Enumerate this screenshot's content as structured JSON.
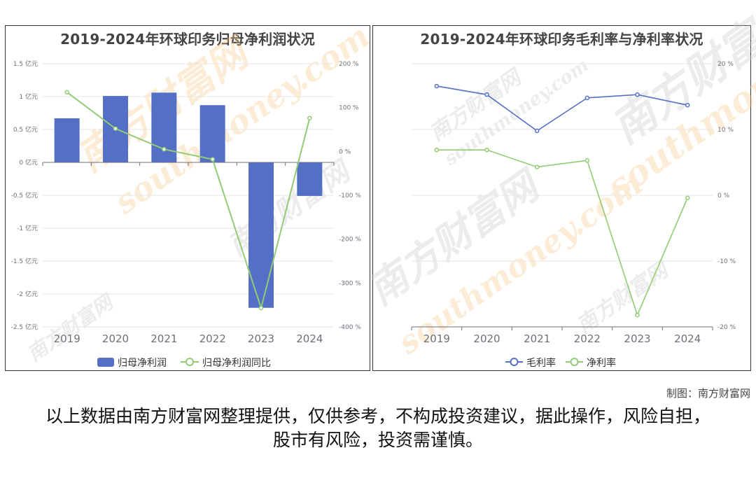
{
  "credit": "制图：南方财富网",
  "disclaimer": "以上数据由南方财富网整理提供，仅供参考，不构成投资建议，据此操作，风险自担，股市有风险，投资需谨慎。",
  "watermark": {
    "cn": "南方财富网",
    "en": "southmoney.com"
  },
  "colors": {
    "bar": "#5470c6",
    "line_green": "#91cc75",
    "line_blue": "#5470c6",
    "axis": "#6e7079",
    "grid": "#e6e6e6",
    "watermark": "#f5c98a"
  },
  "chart_data": [
    {
      "type": "bar",
      "title": "2019-2024年环球印务归母净利润状况",
      "categories": [
        "2019",
        "2020",
        "2021",
        "2022",
        "2023",
        "2024"
      ],
      "series": [
        {
          "name": "归母净利润",
          "type": "bar",
          "axis": "left",
          "values": [
            0.67,
            1.01,
            1.06,
            0.87,
            -2.21,
            -0.51
          ]
        },
        {
          "name": "归母净利润同比",
          "type": "line",
          "axis": "right",
          "values": [
            135,
            52,
            5,
            -18,
            -357,
            76
          ]
        }
      ],
      "y_left": {
        "ticks": [
          "1.5 亿元",
          "1 亿元",
          "0.5 亿元",
          "0 亿元",
          "-0.5 亿元",
          "-1 亿元",
          "-1.5 亿元",
          "-2 亿元",
          "-2.5 亿元"
        ],
        "ylim": [
          -2.5,
          1.5
        ]
      },
      "y_right": {
        "ticks": [
          "200 %",
          "100 %",
          "0 %",
          "-100 %",
          "-200 %",
          "-300 %",
          "-400 %"
        ],
        "ylim": [
          -400,
          200
        ]
      },
      "legend": "bottom-center",
      "grid": true
    },
    {
      "type": "line",
      "title": "2019-2024年环球印务毛利率与净利率状况",
      "categories": [
        "2019",
        "2020",
        "2021",
        "2022",
        "2023",
        "2024"
      ],
      "series": [
        {
          "name": "毛利率",
          "values": [
            16.6,
            15.3,
            9.8,
            14.8,
            15.3,
            13.7
          ]
        },
        {
          "name": "净利率",
          "values": [
            6.9,
            6.9,
            4.3,
            5.3,
            -18.2,
            -0.4
          ]
        }
      ],
      "y_right": {
        "ticks": [
          "20 %",
          "10 %",
          "0 %",
          "-10 %",
          "-20 %"
        ],
        "ylim": [
          -20,
          20
        ]
      },
      "legend": "bottom-center",
      "grid": true
    }
  ]
}
